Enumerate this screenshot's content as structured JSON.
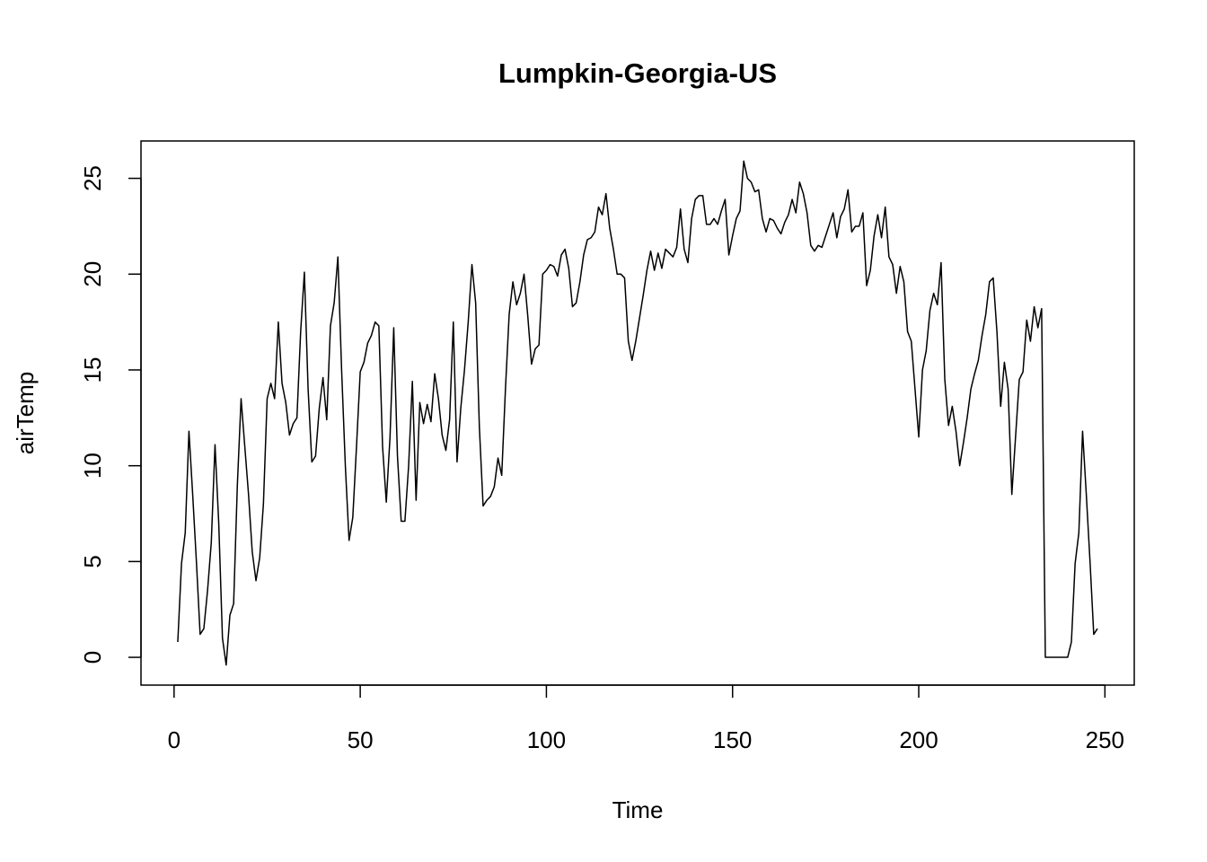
{
  "chart_data": {
    "type": "line",
    "title": "Lumpkin-Georgia-US",
    "xlabel": "Time",
    "ylabel": "airTemp",
    "x": [
      1,
      2,
      3,
      4,
      5,
      6,
      7,
      8,
      9,
      10,
      11,
      12,
      13,
      14,
      15,
      16,
      17,
      18,
      19,
      20,
      21,
      22,
      23,
      24,
      25,
      26,
      27,
      28,
      29,
      30,
      31,
      32,
      33,
      34,
      35,
      36,
      37,
      38,
      39,
      40,
      41,
      42,
      43,
      44,
      45,
      46,
      47,
      48,
      49,
      50,
      51,
      52,
      53,
      54,
      55,
      56,
      57,
      58,
      59,
      60,
      61,
      62,
      63,
      64,
      65,
      66,
      67,
      68,
      69,
      70,
      71,
      72,
      73,
      74,
      75,
      76,
      77,
      78,
      79,
      80,
      81,
      82,
      83,
      84,
      85,
      86,
      87,
      88,
      89,
      90,
      91,
      92,
      93,
      94,
      95,
      96,
      97,
      98,
      99,
      100,
      101,
      102,
      103,
      104,
      105,
      106,
      107,
      108,
      109,
      110,
      111,
      112,
      113,
      114,
      115,
      116,
      117,
      118,
      119,
      120,
      121,
      122,
      123,
      124,
      125,
      126,
      127,
      128,
      129,
      130,
      131,
      132,
      133,
      134,
      135,
      136,
      137,
      138,
      139,
      140,
      141,
      142,
      143,
      144,
      145,
      146,
      147,
      148,
      149,
      150,
      151,
      152,
      153,
      154,
      155,
      156,
      157,
      158,
      159,
      160,
      161,
      162,
      163,
      164,
      165,
      166,
      167,
      168,
      169,
      170,
      171,
      172,
      173,
      174,
      175,
      176,
      177,
      178,
      179,
      180,
      181,
      182,
      183,
      184,
      185,
      186,
      187,
      188,
      189,
      190,
      191,
      192,
      193,
      194,
      195,
      196,
      197,
      198,
      199,
      200,
      201,
      202,
      203,
      204,
      205,
      206,
      207,
      208,
      209,
      210,
      211,
      212,
      213,
      214,
      215,
      216,
      217,
      218,
      219,
      220,
      221,
      222,
      223,
      224,
      225,
      226,
      227,
      228,
      229,
      230,
      231,
      232,
      233,
      234,
      235,
      236,
      237,
      238,
      239,
      240,
      241,
      242,
      243,
      244,
      245,
      246,
      247,
      248
    ],
    "series": [
      {
        "color": "#000000",
        "values": [
          0.8,
          4.9,
          6.5,
          11.8,
          8.5,
          5,
          1.2,
          1.5,
          3.5,
          6,
          11.1,
          7,
          1,
          -0.4,
          2.2,
          2.8,
          9,
          13.5,
          11,
          8.5,
          5.5,
          4,
          5.2,
          8,
          13.5,
          14.3,
          13.5,
          17.5,
          14.3,
          13.3,
          11.6,
          12.2,
          12.5,
          17,
          20.1,
          14,
          10.2,
          10.5,
          13,
          14.6,
          12.4,
          17.3,
          18.5,
          20.9,
          15,
          10,
          6.1,
          7.3,
          11,
          14.9,
          15.4,
          16.4,
          16.8,
          17.5,
          17.3,
          11,
          8.1,
          11.5,
          17.2,
          10.5,
          7.1,
          7.1,
          10,
          14.4,
          8.2,
          13.3,
          12.2,
          13.2,
          12.3,
          14.8,
          13.5,
          11.6,
          10.8,
          12.4,
          17.5,
          10.2,
          13,
          15,
          17.5,
          20.5,
          18.5,
          12,
          7.9,
          8.2,
          8.4,
          8.9,
          10.4,
          9.5,
          14,
          17.9,
          19.6,
          18.4,
          19,
          20,
          17.8,
          15.3,
          16.1,
          16.3,
          20,
          20.2,
          20.5,
          20.4,
          19.9,
          21,
          21.3,
          20.3,
          18.3,
          18.5,
          19.6,
          21,
          21.8,
          21.9,
          22.2,
          23.5,
          23.1,
          24.2,
          22.4,
          21.3,
          20,
          20,
          19.8,
          16.5,
          15.5,
          16.5,
          17.7,
          18.9,
          20.2,
          21.2,
          20.2,
          21.1,
          20.3,
          21.3,
          21.1,
          20.9,
          21.4,
          23.4,
          21.3,
          20.6,
          22.9,
          23.9,
          24.1,
          24.1,
          22.6,
          22.6,
          22.9,
          22.6,
          23.3,
          23.9,
          21,
          22,
          22.9,
          23.3,
          25.9,
          25,
          24.8,
          24.3,
          24.4,
          22.9,
          22.2,
          22.9,
          22.8,
          22.4,
          22.1,
          22.7,
          23.1,
          23.9,
          23.2,
          24.8,
          24.2,
          23.2,
          21.5,
          21.2,
          21.5,
          21.4,
          22,
          22.6,
          23.2,
          21.9,
          23,
          23.4,
          24.4,
          22.2,
          22.5,
          22.5,
          23.2,
          19.4,
          20.2,
          22,
          23.1,
          21.9,
          23.5,
          20.9,
          20.5,
          19,
          20.4,
          19.6,
          17,
          16.5,
          14,
          11.5,
          15,
          16,
          18.1,
          19,
          18.4,
          20.6,
          14.5,
          12.1,
          13.1,
          11.8,
          10,
          11.2,
          12.5,
          14,
          14.8,
          15.5,
          16.8,
          17.9,
          19.6,
          19.8,
          17,
          13.1,
          15.4,
          14,
          8.5,
          11.5,
          14.5,
          14.9,
          17.6,
          16.5,
          18.3,
          17.2,
          18.2,
          0,
          0,
          0,
          0,
          0,
          0,
          0,
          0.8,
          4.9,
          6.5,
          11.8,
          8.5,
          5,
          1.2,
          1.5
        ]
      }
    ],
    "xlim": [
      -8.88,
      257.88
    ],
    "xticks": [
      0,
      50,
      100,
      150,
      200,
      250
    ],
    "ylim": [
      -1.45,
      26.95
    ],
    "yticks": [
      0,
      5,
      10,
      15,
      20,
      25
    ],
    "grid": false
  }
}
